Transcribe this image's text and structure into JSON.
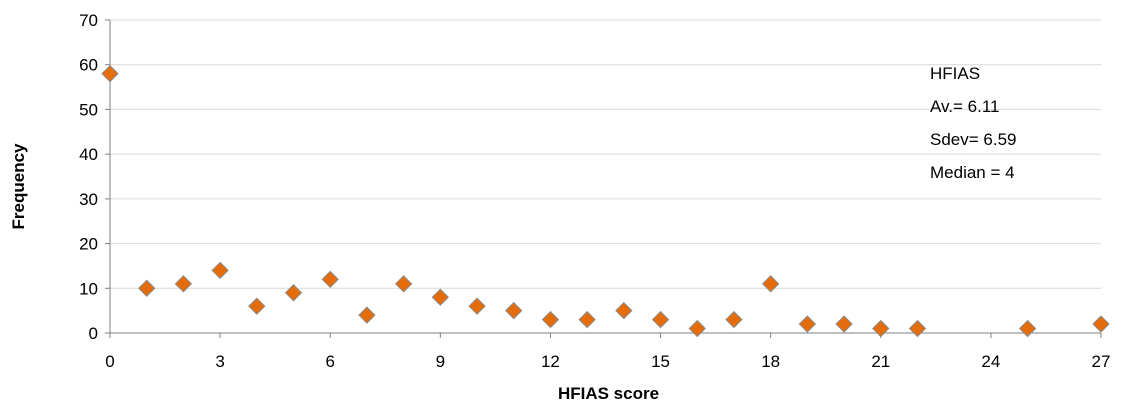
{
  "chart_data": {
    "type": "scatter",
    "xlabel": "HFIAS score",
    "ylabel": "Frequency",
    "xlim": [
      0,
      27
    ],
    "ylim": [
      0,
      70
    ],
    "xticks": [
      0,
      3,
      6,
      9,
      12,
      15,
      18,
      21,
      24,
      27
    ],
    "yticks": [
      0,
      10,
      20,
      30,
      40,
      50,
      60,
      70
    ],
    "grid": "horizontal",
    "marker": "diamond",
    "colors": {
      "marker_fill": "#e46c0a",
      "marker_edge": "#8c8c8c",
      "grid": "#d9d9d9",
      "axis": "#7f7f7f"
    },
    "points": [
      {
        "x": 0,
        "y": 58
      },
      {
        "x": 1,
        "y": 10
      },
      {
        "x": 2,
        "y": 11
      },
      {
        "x": 3,
        "y": 14
      },
      {
        "x": 4,
        "y": 6
      },
      {
        "x": 5,
        "y": 9
      },
      {
        "x": 6,
        "y": 12
      },
      {
        "x": 7,
        "y": 4
      },
      {
        "x": 8,
        "y": 11
      },
      {
        "x": 9,
        "y": 8
      },
      {
        "x": 10,
        "y": 6
      },
      {
        "x": 11,
        "y": 5
      },
      {
        "x": 12,
        "y": 3
      },
      {
        "x": 13,
        "y": 3
      },
      {
        "x": 14,
        "y": 5
      },
      {
        "x": 15,
        "y": 3
      },
      {
        "x": 16,
        "y": 1
      },
      {
        "x": 17,
        "y": 3
      },
      {
        "x": 18,
        "y": 11
      },
      {
        "x": 19,
        "y": 2
      },
      {
        "x": 20,
        "y": 2
      },
      {
        "x": 21,
        "y": 1
      },
      {
        "x": 22,
        "y": 1
      },
      {
        "x": 25,
        "y": 1
      },
      {
        "x": 27,
        "y": 2
      }
    ],
    "annotation": [
      "HFIAS",
      "Av.= 6.11",
      "Sdev= 6.59",
      "Median = 4"
    ]
  }
}
